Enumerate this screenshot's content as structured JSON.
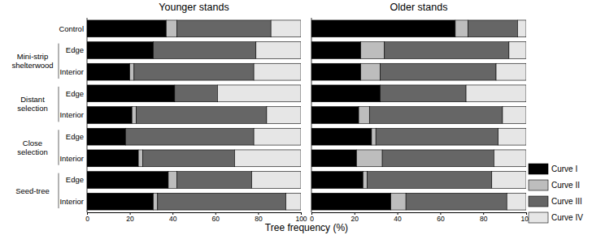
{
  "chart_data": [
    {
      "type": "bar",
      "orientation": "horizontal",
      "stacked": true,
      "title": "Younger stands",
      "x_label": "Tree frequency (%)",
      "categories": [
        "Control",
        "Edge",
        "Interior",
        "Edge",
        "Interior",
        "Edge",
        "Interior",
        "Edge",
        "Interior"
      ],
      "groups": [
        null,
        "Mini-strip shelterwood",
        "Mini-strip shelterwood",
        "Distant selection",
        "Distant selection",
        "Close selection",
        "Close selection",
        "Seed-tree",
        "Seed-tree"
      ],
      "xlim": [
        0,
        100
      ],
      "xticks": [
        0,
        20,
        40,
        60,
        80,
        100
      ],
      "series": [
        {
          "name": "Curve I",
          "color": "#000000",
          "values": [
            37,
            31,
            20,
            41,
            21,
            18,
            24,
            38,
            31
          ]
        },
        {
          "name": "Curve II",
          "color": "#bdbdbd",
          "values": [
            5,
            0,
            2,
            0,
            2,
            0,
            2,
            4,
            2
          ]
        },
        {
          "name": "Curve III",
          "color": "#666666",
          "values": [
            44,
            48,
            56,
            20,
            61,
            60,
            43,
            35,
            60
          ]
        },
        {
          "name": "Curve IV",
          "color": "#e6e6e6",
          "values": [
            14,
            21,
            22,
            39,
            16,
            22,
            31,
            23,
            7
          ]
        }
      ]
    },
    {
      "type": "bar",
      "orientation": "horizontal",
      "stacked": true,
      "title": "Older stands",
      "tick_labels": "x",
      "legend": "right",
      "categories": [
        "Control",
        "Edge",
        "Interior",
        "Edge",
        "Interior",
        "Edge",
        "Interior",
        "Edge",
        "Interior"
      ],
      "xlim": [
        0,
        100
      ],
      "xticks": [
        0,
        20,
        40,
        60,
        80,
        100
      ],
      "series": [
        {
          "name": "Curve I",
          "color": "#000000",
          "values": [
            67,
            23,
            23,
            32,
            22,
            28,
            21,
            24,
            37
          ]
        },
        {
          "name": "Curve II",
          "color": "#bdbdbd",
          "values": [
            6,
            11,
            9,
            0,
            5,
            2,
            12,
            2,
            7
          ]
        },
        {
          "name": "Curve III",
          "color": "#666666",
          "values": [
            23,
            58,
            54,
            40,
            62,
            57,
            52,
            58,
            47
          ]
        },
        {
          "name": "Curve IV",
          "color": "#e6e6e6",
          "values": [
            4,
            8,
            14,
            28,
            11,
            13,
            15,
            16,
            9
          ]
        }
      ]
    }
  ]
}
